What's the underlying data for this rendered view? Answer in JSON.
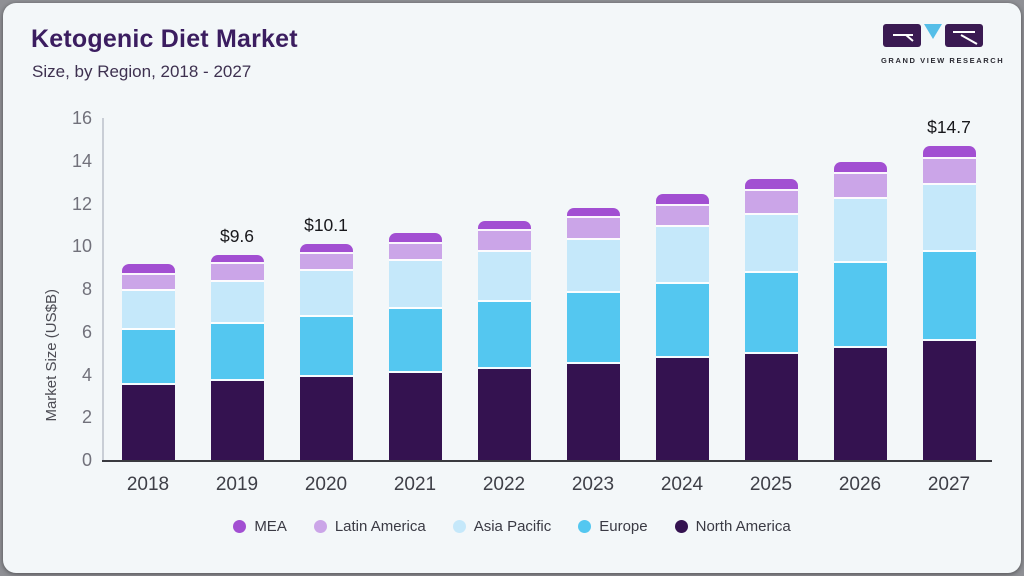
{
  "header": {
    "title": "Ketogenic Diet Market",
    "subtitle": "Size, by Region, 2018 - 2027"
  },
  "logo": {
    "text": "GRAND VIEW RESEARCH",
    "mark_dark_color": "#3a1a52",
    "mark_blue_color": "#55bee8"
  },
  "chart_data": {
    "type": "bar",
    "stacked": true,
    "title": "Ketogenic Diet Market",
    "subtitle": "Size, by Region, 2018 - 2027",
    "xlabel": "",
    "ylabel": "Market Size (US$B)",
    "ylim": [
      0,
      16
    ],
    "yticks": [
      0,
      2,
      4,
      6,
      8,
      10,
      12,
      14,
      16
    ],
    "grid": false,
    "legend_position": "bottom",
    "categories": [
      "2018",
      "2019",
      "2020",
      "2021",
      "2022",
      "2023",
      "2024",
      "2025",
      "2026",
      "2027"
    ],
    "series": [
      {
        "name": "North America",
        "color": "#341250",
        "values": [
          3.5,
          3.7,
          3.9,
          4.05,
          4.25,
          4.5,
          4.75,
          4.95,
          5.25,
          5.55
        ]
      },
      {
        "name": "Europe",
        "color": "#54c7f0",
        "values": [
          2.6,
          2.65,
          2.8,
          3.0,
          3.15,
          3.3,
          3.5,
          3.8,
          3.95,
          4.2
        ]
      },
      {
        "name": "Asia Pacific",
        "color": "#c5e8fa",
        "values": [
          1.8,
          2.0,
          2.15,
          2.25,
          2.35,
          2.5,
          2.65,
          2.7,
          3.0,
          3.1
        ]
      },
      {
        "name": "Latin America",
        "color": "#cba5e8",
        "values": [
          0.75,
          0.8,
          0.78,
          0.8,
          0.95,
          1.0,
          1.0,
          1.15,
          1.2,
          1.25
        ]
      },
      {
        "name": "MEA",
        "color": "#a24fd2",
        "values": [
          0.5,
          0.45,
          0.47,
          0.5,
          0.5,
          0.5,
          0.55,
          0.55,
          0.55,
          0.6
        ]
      }
    ],
    "bar_labels": {
      "2019": "$9.6",
      "2020": "$10.1",
      "2027": "$14.7"
    },
    "legend_order": [
      "MEA",
      "Latin America",
      "Asia Pacific",
      "Europe",
      "North America"
    ]
  }
}
